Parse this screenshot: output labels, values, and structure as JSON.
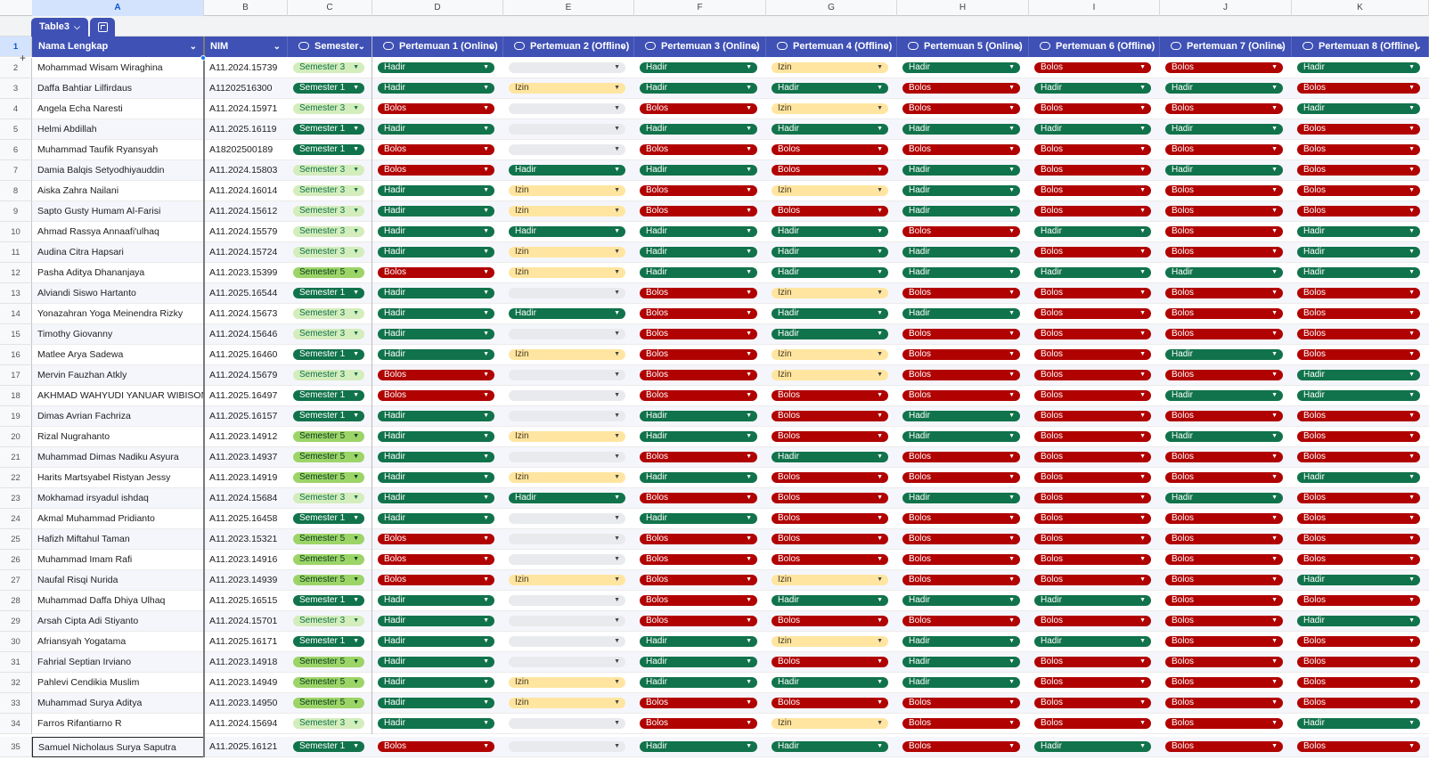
{
  "column_letters": [
    "A",
    "B",
    "C",
    "D",
    "E",
    "F",
    "G",
    "H",
    "I",
    "J",
    "K"
  ],
  "table_name": "Table3",
  "headers": [
    "Nama Lengkap",
    "NIM",
    "Semester",
    "Pertemuan 1 (Online)",
    "Pertemuan 2 (Offline)",
    "Pertemuan 3 (Online)",
    "Pertemuan 4 (Offline)",
    "Pertemuan 5 (Online)",
    "Pertemuan 6 (Offline)",
    "Pertemuan 7 (Online)",
    "Pertemuan 8 (Offline)"
  ],
  "status_colors": {
    "Hadir": "#11734b",
    "Bolos": "#b10202",
    "Izin": "#ffe5a0",
    "Semester 1": "#11734b",
    "Semester 3": "#d4edbc",
    "Semester 5": "#9cd468",
    "header": "#3f51b5"
  },
  "rows": [
    {
      "n": "2",
      "name": "Mohammad Wisam Wiraghina",
      "nim": "A11.2024.15739",
      "sem": "Semester 3",
      "p": [
        "Hadir",
        "",
        "Hadir",
        "Izin",
        "Hadir",
        "Bolos",
        "Bolos",
        "Hadir"
      ]
    },
    {
      "n": "3",
      "name": "Daffa Bahtiar Lilfirdaus",
      "nim": "A11202516300",
      "sem": "Semester 1",
      "p": [
        "Hadir",
        "Izin",
        "Hadir",
        "Hadir",
        "Bolos",
        "Hadir",
        "Hadir",
        "Bolos"
      ]
    },
    {
      "n": "4",
      "name": "Angela Echa Naresti",
      "nim": "A11.2024.15971",
      "sem": "Semester 3",
      "p": [
        "Bolos",
        "",
        "Bolos",
        "Izin",
        "Bolos",
        "Bolos",
        "Bolos",
        "Hadir"
      ]
    },
    {
      "n": "5",
      "name": "Helmi Abdillah",
      "nim": "A11.2025.16119",
      "sem": "Semester 1",
      "p": [
        "Hadir",
        "",
        "Hadir",
        "Hadir",
        "Hadir",
        "Hadir",
        "Hadir",
        "Bolos"
      ]
    },
    {
      "n": "6",
      "name": "Muhammad Taufik Ryansyah",
      "nim": "A18202500189",
      "sem": "Semester 1",
      "p": [
        "Bolos",
        "",
        "Bolos",
        "Bolos",
        "Bolos",
        "Bolos",
        "Bolos",
        "Bolos"
      ]
    },
    {
      "n": "7",
      "name": "Damia Balqis Setyodhiyauddin",
      "nim": "A11.2024.15803",
      "sem": "Semester 3",
      "p": [
        "Bolos",
        "Hadir",
        "Hadir",
        "Bolos",
        "Hadir",
        "Bolos",
        "Hadir",
        "Bolos"
      ]
    },
    {
      "n": "8",
      "name": "Aiska Zahra Nailani",
      "nim": "A11.2024.16014",
      "sem": "Semester 3",
      "p": [
        "Hadir",
        "Izin",
        "Bolos",
        "Izin",
        "Hadir",
        "Bolos",
        "Bolos",
        "Bolos"
      ]
    },
    {
      "n": "9",
      "name": "Sapto Gusty Humam Al-Farisi",
      "nim": "A11.2024.15612",
      "sem": "Semester 3",
      "p": [
        "Hadir",
        "Izin",
        "Bolos",
        "Bolos",
        "Hadir",
        "Bolos",
        "Bolos",
        "Bolos"
      ]
    },
    {
      "n": "10",
      "name": "Ahmad Rassya Annaafi'ulhaq",
      "nim": "A11.2024.15579",
      "sem": "Semester 3",
      "p": [
        "Hadir",
        "Hadir",
        "Hadir",
        "Hadir",
        "Bolos",
        "Hadir",
        "Bolos",
        "Hadir"
      ]
    },
    {
      "n": "11",
      "name": "Audina Citra Hapsari",
      "nim": "A11.2024.15724",
      "sem": "Semester 3",
      "p": [
        "Hadir",
        "Izin",
        "Hadir",
        "Hadir",
        "Hadir",
        "Bolos",
        "Bolos",
        "Hadir"
      ]
    },
    {
      "n": "12",
      "name": "Pasha Aditya Dhananjaya",
      "nim": "A11.2023.15399",
      "sem": "Semester 5",
      "p": [
        "Bolos",
        "Izin",
        "Hadir",
        "Hadir",
        "Hadir",
        "Hadir",
        "Hadir",
        "Hadir"
      ]
    },
    {
      "n": "13",
      "name": "Alviandi Siswo Hartanto",
      "nim": "A11.2025.16544",
      "sem": "Semester 1",
      "p": [
        "Hadir",
        "",
        "Bolos",
        "Izin",
        "Bolos",
        "Bolos",
        "Bolos",
        "Bolos"
      ]
    },
    {
      "n": "14",
      "name": "Yonazahran Yoga Meinendra Rizky",
      "nim": "A11.2024.15673",
      "sem": "Semester 3",
      "p": [
        "Hadir",
        "Hadir",
        "Bolos",
        "Hadir",
        "Hadir",
        "Bolos",
        "Bolos",
        "Bolos"
      ]
    },
    {
      "n": "15",
      "name": "Timothy Giovanny",
      "nim": "A11.2024.15646",
      "sem": "Semester 3",
      "p": [
        "Hadir",
        "",
        "Bolos",
        "Hadir",
        "Bolos",
        "Bolos",
        "Bolos",
        "Bolos"
      ]
    },
    {
      "n": "16",
      "name": "Matlee Arya Sadewa",
      "nim": "A11.2025.16460",
      "sem": "Semester 1",
      "p": [
        "Hadir",
        "Izin",
        "Bolos",
        "Izin",
        "Bolos",
        "Bolos",
        "Hadir",
        "Bolos"
      ]
    },
    {
      "n": "17",
      "name": "Mervin Fauzhan Atkly",
      "nim": "A11.2024.15679",
      "sem": "Semester 3",
      "p": [
        "Bolos",
        "",
        "Bolos",
        "Izin",
        "Bolos",
        "Bolos",
        "Bolos",
        "Hadir"
      ]
    },
    {
      "n": "18",
      "name": "AKHMAD WAHYUDI YANUAR WIBISONO",
      "nim": "A11.2025.16497",
      "sem": "Semester 1",
      "p": [
        "Bolos",
        "",
        "Bolos",
        "Bolos",
        "Bolos",
        "Bolos",
        "Hadir",
        "Hadir"
      ]
    },
    {
      "n": "19",
      "name": "Dimas Avrian Fachriza",
      "nim": "A11.2025.16157",
      "sem": "Semester 1",
      "p": [
        "Hadir",
        "",
        "Hadir",
        "Bolos",
        "Hadir",
        "Bolos",
        "Bolos",
        "Bolos"
      ]
    },
    {
      "n": "20",
      "name": "Rizal Nugrahanto",
      "nim": "A11.2023.14912",
      "sem": "Semester 5",
      "p": [
        "Hadir",
        "Izin",
        "Hadir",
        "Bolos",
        "Hadir",
        "Bolos",
        "Hadir",
        "Bolos"
      ]
    },
    {
      "n": "21",
      "name": "Muhammad Dimas Nadiku Asyura",
      "nim": "A11.2023.14937",
      "sem": "Semester 5",
      "p": [
        "Hadir",
        "",
        "Bolos",
        "Hadir",
        "Bolos",
        "Bolos",
        "Bolos",
        "Bolos"
      ]
    },
    {
      "n": "22",
      "name": "Harits Martsyabel Ristyan Jessy",
      "nim": "A11.2023.14919",
      "sem": "Semester 5",
      "p": [
        "Hadir",
        "Izin",
        "Hadir",
        "Bolos",
        "Bolos",
        "Bolos",
        "Bolos",
        "Hadir"
      ]
    },
    {
      "n": "23",
      "name": "Mokhamad irsyadul ishdaq",
      "nim": "A11.2024.15684",
      "sem": "Semester 3",
      "p": [
        "Hadir",
        "Hadir",
        "Bolos",
        "Bolos",
        "Hadir",
        "Bolos",
        "Hadir",
        "Bolos"
      ]
    },
    {
      "n": "24",
      "name": "Akmal Muhammad Pridianto",
      "nim": "A11.2025.16458",
      "sem": "Semester 1",
      "p": [
        "Hadir",
        "",
        "Hadir",
        "Bolos",
        "Bolos",
        "Bolos",
        "Bolos",
        "Bolos"
      ]
    },
    {
      "n": "25",
      "name": "Hafizh Miftahul Taman",
      "nim": "A11.2023.15321",
      "sem": "Semester 5",
      "p": [
        "Bolos",
        "",
        "Bolos",
        "Bolos",
        "Bolos",
        "Bolos",
        "Bolos",
        "Bolos"
      ]
    },
    {
      "n": "26",
      "name": "Muhammad Imam Rafi",
      "nim": "A11.2023.14916",
      "sem": "Semester 5",
      "p": [
        "Bolos",
        "",
        "Bolos",
        "Bolos",
        "Bolos",
        "Bolos",
        "Bolos",
        "Bolos"
      ]
    },
    {
      "n": "27",
      "name": "Naufal Risqi Nurida",
      "nim": "A11.2023.14939",
      "sem": "Semester 5",
      "p": [
        "Bolos",
        "Izin",
        "Bolos",
        "Izin",
        "Bolos",
        "Bolos",
        "Bolos",
        "Hadir"
      ]
    },
    {
      "n": "28",
      "name": "Muhammad Daffa Dhiya Ulhaq",
      "nim": "A11.2025.16515",
      "sem": "Semester 1",
      "p": [
        "Hadir",
        "",
        "Bolos",
        "Hadir",
        "Hadir",
        "Hadir",
        "Bolos",
        "Bolos"
      ]
    },
    {
      "n": "29",
      "name": "Arsah Cipta Adi Stiyanto",
      "nim": "A11.2024.15701",
      "sem": "Semester 3",
      "p": [
        "Hadir",
        "",
        "Bolos",
        "Bolos",
        "Bolos",
        "Bolos",
        "Bolos",
        "Hadir"
      ]
    },
    {
      "n": "30",
      "name": "Afriansyah Yogatama",
      "nim": "A11.2025.16171",
      "sem": "Semester 1",
      "p": [
        "Hadir",
        "",
        "Hadir",
        "Izin",
        "Hadir",
        "Hadir",
        "Bolos",
        "Bolos"
      ]
    },
    {
      "n": "31",
      "name": "Fahrial Septian Irviano",
      "nim": "A11.2023.14918",
      "sem": "Semester 5",
      "p": [
        "Hadir",
        "",
        "Hadir",
        "Bolos",
        "Hadir",
        "Bolos",
        "Bolos",
        "Bolos"
      ]
    },
    {
      "n": "32",
      "name": "Pahlevi Cendikia Muslim",
      "nim": "A11.2023.14949",
      "sem": "Semester 5",
      "p": [
        "Hadir",
        "Izin",
        "Hadir",
        "Hadir",
        "Hadir",
        "Bolos",
        "Bolos",
        "Bolos"
      ]
    },
    {
      "n": "33",
      "name": "Muhammad Surya Aditya",
      "nim": "A11.2023.14950",
      "sem": "Semester 5",
      "p": [
        "Hadir",
        "Izin",
        "Bolos",
        "Bolos",
        "Bolos",
        "Bolos",
        "Bolos",
        "Bolos"
      ]
    },
    {
      "n": "34",
      "name": "Farros Rifantiarno R",
      "nim": "A11.2024.15694",
      "sem": "Semester 3",
      "p": [
        "Hadir",
        "",
        "Bolos",
        "Izin",
        "Bolos",
        "Bolos",
        "Bolos",
        "Hadir"
      ]
    },
    {
      "n": "35",
      "name": "Samuel Nicholaus Surya Saputra",
      "nim": "A11.2025.16121",
      "sem": "Semester 1",
      "p": [
        "Bolos",
        "",
        "Hadir",
        "Hadir",
        "Bolos",
        "Hadir",
        "Bolos",
        "Bolos"
      ]
    }
  ]
}
